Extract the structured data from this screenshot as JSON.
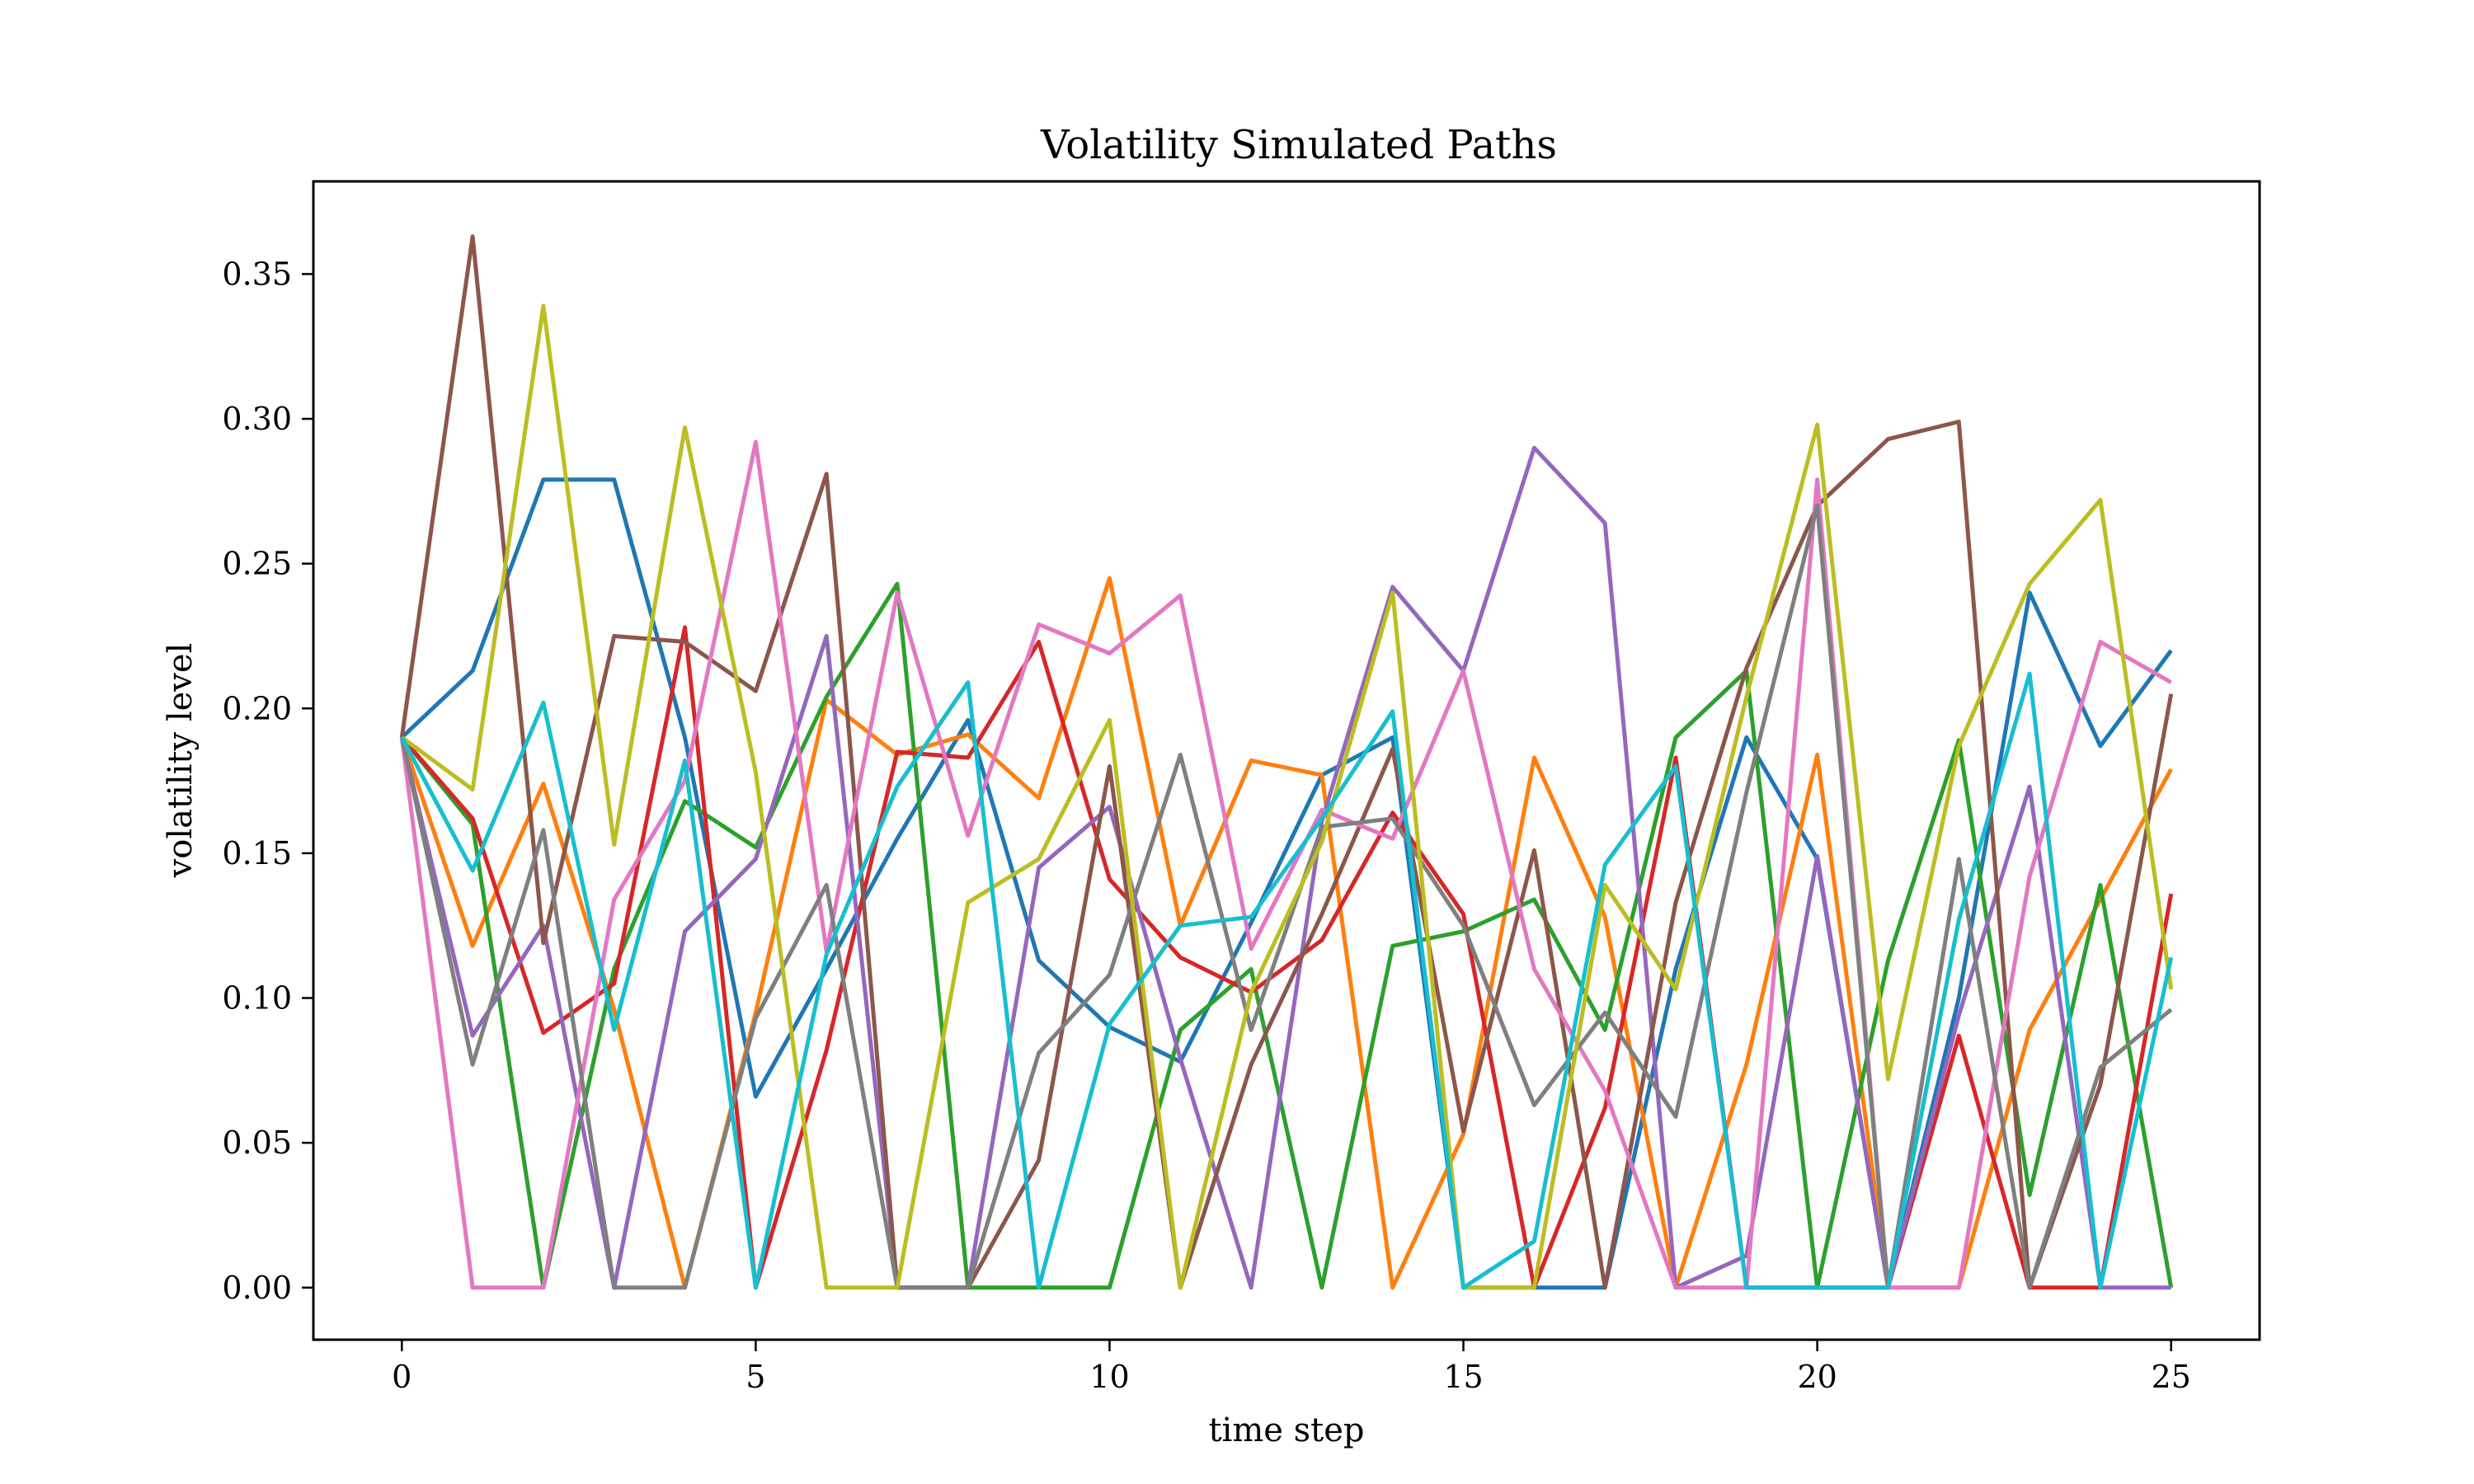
{
  "chart_data": {
    "type": "line",
    "title": "Volatility Simulated Paths",
    "xlabel": "time step",
    "ylabel": "volatility level",
    "xlim": [
      -1.25,
      26.25
    ],
    "ylim": [
      -0.018,
      0.382
    ],
    "x_ticks": [
      0,
      5,
      10,
      15,
      20,
      25
    ],
    "x_tick_labels": [
      "0",
      "5",
      "10",
      "15",
      "20",
      "25"
    ],
    "y_ticks": [
      0.0,
      0.05,
      0.1,
      0.15,
      0.2,
      0.25,
      0.3,
      0.35
    ],
    "y_tick_labels": [
      "0.00",
      "0.05",
      "0.10",
      "0.15",
      "0.20",
      "0.25",
      "0.30",
      "0.35"
    ],
    "grid": false,
    "legend": "none",
    "x": [
      0,
      1,
      2,
      3,
      4,
      5,
      6,
      7,
      8,
      9,
      10,
      11,
      12,
      13,
      14,
      15,
      16,
      17,
      18,
      19,
      20,
      21,
      22,
      23,
      24,
      25
    ],
    "series": [
      {
        "color": "#1f77b4",
        "values": [
          0.19,
          0.213,
          0.279,
          0.279,
          0.19,
          0.066,
          0.11,
          0.155,
          0.196,
          0.113,
          0.09,
          0.078,
          0.126,
          0.177,
          0.19,
          0.0,
          0.0,
          0.0,
          0.11,
          0.19,
          0.148,
          0.0,
          0.1,
          0.24,
          0.187,
          0.22
        ]
      },
      {
        "color": "#ff7f0e",
        "values": [
          0.19,
          0.118,
          0.174,
          0.096,
          0.0,
          0.095,
          0.203,
          0.184,
          0.191,
          0.169,
          0.245,
          0.125,
          0.182,
          0.177,
          0.0,
          0.053,
          0.183,
          0.128,
          0.0,
          0.077,
          0.184,
          0.0,
          0.0,
          0.089,
          0.134,
          0.179
        ]
      },
      {
        "color": "#2ca02c",
        "values": [
          0.19,
          0.16,
          0.0,
          0.11,
          0.168,
          0.152,
          0.204,
          0.243,
          0.0,
          0.0,
          0.0,
          0.089,
          0.11,
          0.0,
          0.118,
          0.123,
          0.134,
          0.089,
          0.19,
          0.213,
          0.0,
          0.113,
          0.189,
          0.032,
          0.139,
          0.0
        ]
      },
      {
        "color": "#d62728",
        "values": [
          0.19,
          0.162,
          0.088,
          0.105,
          0.228,
          0.0,
          0.082,
          0.185,
          0.183,
          0.223,
          0.141,
          0.114,
          0.102,
          0.12,
          0.164,
          0.129,
          0.0,
          0.062,
          0.183,
          0.0,
          0.0,
          0.0,
          0.087,
          0.0,
          0.0,
          0.136
        ]
      },
      {
        "color": "#9467bd",
        "values": [
          0.19,
          0.087,
          0.125,
          0.0,
          0.123,
          0.148,
          0.225,
          0.0,
          0.0,
          0.145,
          0.166,
          0.079,
          0.0,
          0.161,
          0.242,
          0.213,
          0.29,
          0.264,
          0.0,
          0.011,
          0.149,
          0.0,
          0.094,
          0.173,
          0.0,
          0.0
        ]
      },
      {
        "color": "#8c564b",
        "values": [
          0.19,
          0.363,
          0.119,
          0.225,
          0.223,
          0.206,
          0.281,
          0.0,
          0.0,
          0.044,
          0.18,
          0.0,
          0.077,
          0.129,
          0.186,
          0.054,
          0.151,
          0.0,
          0.133,
          0.214,
          0.27,
          0.293,
          0.299,
          0.0,
          0.07,
          0.205
        ]
      },
      {
        "color": "#e377c2",
        "values": [
          0.19,
          0.0,
          0.0,
          0.134,
          0.175,
          0.292,
          0.116,
          0.24,
          0.156,
          0.229,
          0.219,
          0.239,
          0.117,
          0.165,
          0.155,
          0.213,
          0.11,
          0.068,
          0.0,
          0.0,
          0.279,
          0.0,
          0.0,
          0.142,
          0.223,
          0.209
        ]
      },
      {
        "color": "#7f7f7f",
        "values": [
          0.19,
          0.077,
          0.158,
          0.0,
          0.0,
          0.093,
          0.139,
          0.0,
          0.0,
          0.081,
          0.108,
          0.184,
          0.089,
          0.159,
          0.162,
          0.125,
          0.063,
          0.095,
          0.059,
          0.171,
          0.27,
          0.0,
          0.148,
          0.0,
          0.076,
          0.096
        ]
      },
      {
        "color": "#bcbd22",
        "values": [
          0.19,
          0.172,
          0.339,
          0.153,
          0.297,
          0.178,
          0.0,
          0.0,
          0.133,
          0.148,
          0.196,
          0.0,
          0.102,
          0.154,
          0.24,
          0.0,
          0.0,
          0.139,
          0.103,
          0.204,
          0.298,
          0.072,
          0.187,
          0.243,
          0.272,
          0.103
        ]
      },
      {
        "color": "#17becf",
        "values": [
          0.19,
          0.144,
          0.202,
          0.089,
          0.182,
          0.0,
          0.115,
          0.173,
          0.209,
          0.0,
          0.091,
          0.125,
          0.128,
          0.162,
          0.199,
          0.0,
          0.016,
          0.146,
          0.18,
          0.0,
          0.0,
          0.0,
          0.127,
          0.212,
          0.0,
          0.114
        ]
      }
    ]
  }
}
